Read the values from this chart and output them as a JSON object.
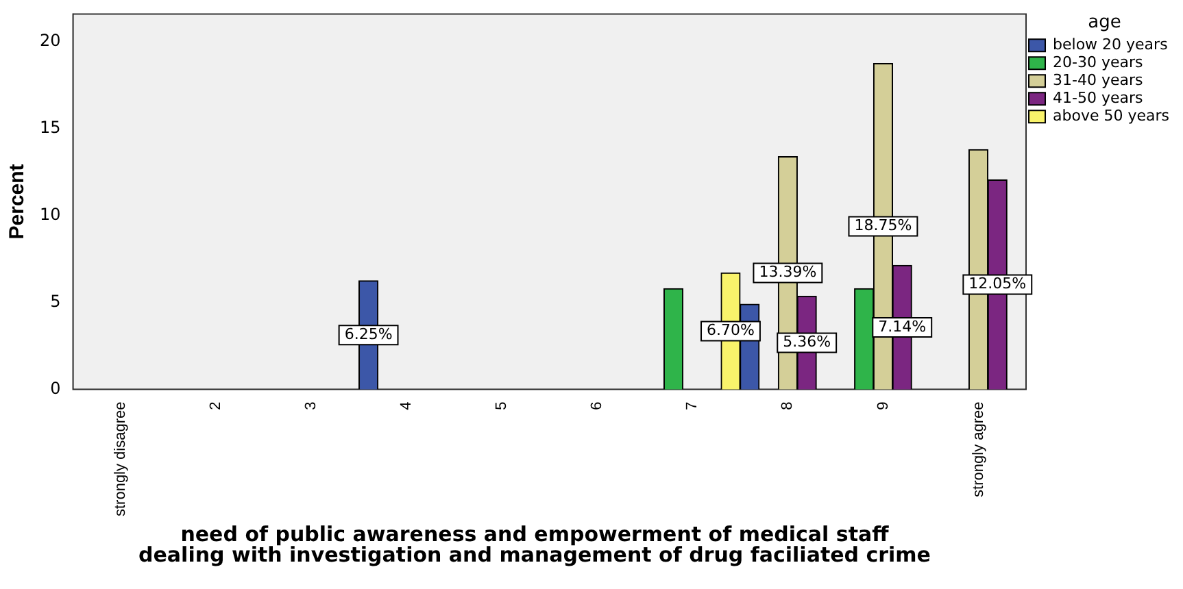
{
  "chart_data": {
    "type": "bar",
    "xlabel": "need of public awareness and empowerment of medical staff dealing with investigation and management of drug faciliated crime",
    "ylabel": "Percent",
    "legend_title": "age",
    "legend": "right",
    "grid": false,
    "categories": [
      "strongly disagree",
      "2",
      "3",
      "4",
      "5",
      "6",
      "7",
      "8",
      "9",
      "strongly agree"
    ],
    "ylim": [
      0,
      21.6
    ],
    "yticks": [
      0,
      5,
      10,
      15,
      20
    ],
    "series": [
      {
        "name": "below 20 years",
        "color": "#3c57a8",
        "values": [
          null,
          null,
          null,
          6.25,
          null,
          null,
          null,
          4.9,
          null,
          null
        ],
        "value_labels": [
          null,
          null,
          null,
          "6.25%",
          null,
          null,
          null,
          null,
          null,
          null
        ]
      },
      {
        "name": "20-30 years",
        "color": "#2fb44a",
        "values": [
          null,
          null,
          null,
          null,
          null,
          null,
          5.8,
          null,
          5.8,
          null
        ],
        "value_labels": [
          null,
          null,
          null,
          null,
          null,
          null,
          null,
          null,
          null,
          null
        ]
      },
      {
        "name": "31-40 years",
        "color": "#d4cf98",
        "values": [
          null,
          null,
          null,
          null,
          null,
          null,
          null,
          13.39,
          18.75,
          13.8
        ],
        "value_labels": [
          null,
          null,
          null,
          null,
          null,
          null,
          null,
          "13.39%",
          "18.75%",
          null
        ]
      },
      {
        "name": "41-50 years",
        "color": "#7b2681",
        "values": [
          null,
          null,
          null,
          null,
          null,
          null,
          null,
          5.36,
          7.14,
          12.05
        ],
        "value_labels": [
          null,
          null,
          null,
          null,
          null,
          null,
          null,
          "5.36%",
          "7.14%",
          "12.05%"
        ]
      },
      {
        "name": "above 50 years",
        "color": "#f9f36b",
        "values": [
          null,
          null,
          null,
          null,
          null,
          null,
          6.7,
          null,
          null,
          null
        ],
        "value_labels": [
          null,
          null,
          null,
          null,
          null,
          null,
          "6.70%",
          null,
          null,
          null
        ]
      }
    ]
  }
}
